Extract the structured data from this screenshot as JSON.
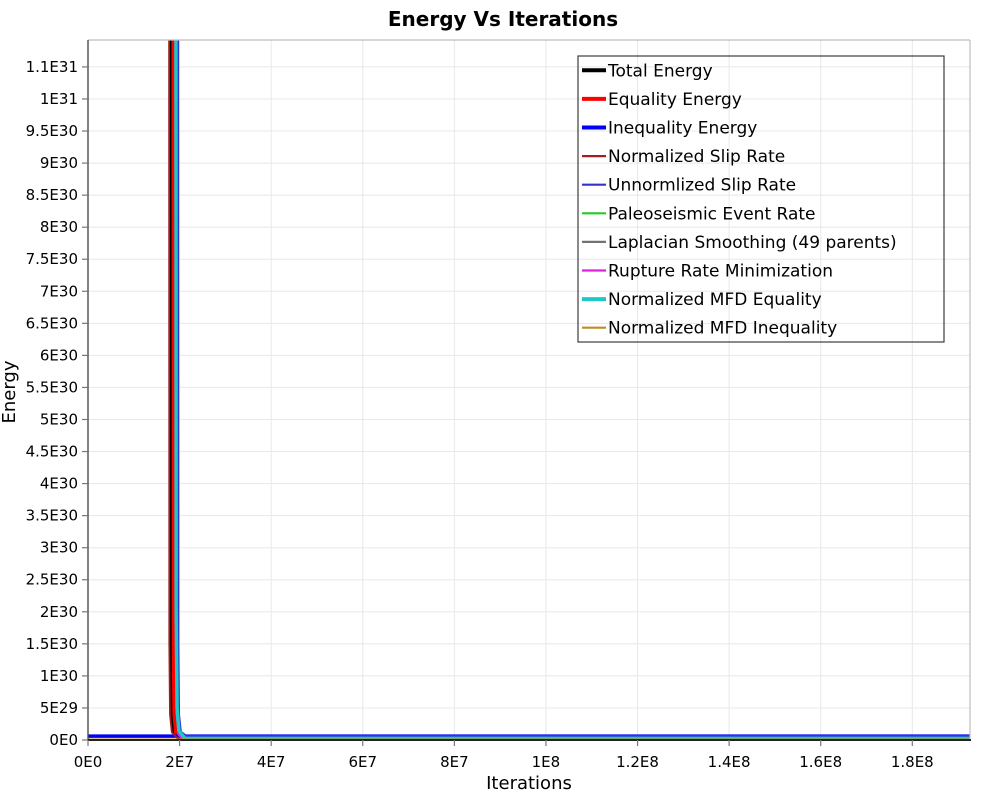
{
  "title": "Energy Vs Iterations",
  "colors": {
    "background": "#ffffff",
    "grid": "#e8e8e8",
    "frame": "#bdbdbd",
    "axis_left": "#4d4d4d",
    "axis_bottom": "#222222",
    "tick": "#777777",
    "legend_border": "#3c3c3c",
    "text": "#000000"
  },
  "chart_data": {
    "type": "line",
    "title": "Energy Vs Iterations",
    "xlabel": "Iterations",
    "ylabel": "Energy",
    "xlim": [
      0,
      192600000.0
    ],
    "ylim": [
      0,
      1.092e+31
    ],
    "grid": true,
    "legend_position": "top-right",
    "x_ticks": [
      {
        "value": 0,
        "label": "0E0"
      },
      {
        "value": 20000000.0,
        "label": "2E7"
      },
      {
        "value": 40000000.0,
        "label": "4E7"
      },
      {
        "value": 60000000.0,
        "label": "6E7"
      },
      {
        "value": 80000000.0,
        "label": "8E7"
      },
      {
        "value": 100000000.0,
        "label": "1E8"
      },
      {
        "value": 120000000.0,
        "label": "1.2E8"
      },
      {
        "value": 140000000.0,
        "label": "1.4E8"
      },
      {
        "value": 160000000.0,
        "label": "1.6E8"
      },
      {
        "value": 180000000.0,
        "label": "1.8E8"
      }
    ],
    "y_ticks": [
      {
        "value": 0,
        "label": "0E0"
      },
      {
        "value": 5e+29,
        "label": "5E29"
      },
      {
        "value": 1e+30,
        "label": "1E30"
      },
      {
        "value": 1.5e+30,
        "label": "1.5E30"
      },
      {
        "value": 2e+30,
        "label": "2E30"
      },
      {
        "value": 2.5e+30,
        "label": "2.5E30"
      },
      {
        "value": 3e+30,
        "label": "3E30"
      },
      {
        "value": 3.5e+30,
        "label": "3.5E30"
      },
      {
        "value": 4e+30,
        "label": "4E30"
      },
      {
        "value": 4.5e+30,
        "label": "4.5E30"
      },
      {
        "value": 5e+30,
        "label": "5E30"
      },
      {
        "value": 5.5e+30,
        "label": "5.5E30"
      },
      {
        "value": 6e+30,
        "label": "6E30"
      },
      {
        "value": 6.5e+30,
        "label": "6.5E30"
      },
      {
        "value": 7e+30,
        "label": "7E30"
      },
      {
        "value": 7.5e+30,
        "label": "7.5E30"
      },
      {
        "value": 8e+30,
        "label": "8E30"
      },
      {
        "value": 8.5e+30,
        "label": "8.5E30"
      },
      {
        "value": 9e+30,
        "label": "9E30"
      },
      {
        "value": 9.5e+30,
        "label": "9.5E30"
      },
      {
        "value": 1e+31,
        "label": "1E31"
      },
      {
        "value": 1.05e+31,
        "label": "1.1E31"
      }
    ],
    "series": [
      {
        "name": "Total Energy",
        "color": "#000000",
        "width": 3.5,
        "points": [
          [
            18100000.0,
            1.2e+31
          ],
          [
            18150000.0,
            1.5e+30
          ],
          [
            18300000.0,
            4e+29
          ],
          [
            18700000.0,
            1.2e+29
          ],
          [
            20000000.0,
            5e+28
          ],
          [
            192600000.0,
            4.5e+28
          ]
        ]
      },
      {
        "name": "Equality Energy",
        "color": "#ff0000",
        "width": 3.5,
        "points": [
          [
            18600000.0,
            1.2e+31
          ],
          [
            18650000.0,
            1.5e+30
          ],
          [
            18800000.0,
            4e+29
          ],
          [
            19200000.0,
            1.1e+29
          ],
          [
            20500000.0,
            5.5e+28
          ],
          [
            192600000.0,
            5.5e+28
          ]
        ]
      },
      {
        "name": "Inequality Energy",
        "color": "#0000ff",
        "width": 3.5,
        "points": [
          [
            0,
            6e+28
          ],
          [
            192600000.0,
            6e+28
          ]
        ]
      },
      {
        "name": "Normalized Slip Rate",
        "color": "#a02020",
        "width": 1.8,
        "points": [
          [
            17700000.0,
            1.2e+31
          ],
          [
            17750000.0,
            1.5e+30
          ],
          [
            17900000.0,
            4e+29
          ],
          [
            18300000.0,
            1.2e+29
          ],
          [
            19500000.0,
            3e+28
          ],
          [
            192600000.0,
            3e+28
          ]
        ]
      },
      {
        "name": "Unnormlized Slip Rate",
        "color": "#3333cc",
        "width": 1.8,
        "points": [
          [
            19700000.0,
            1.2e+31
          ],
          [
            19750000.0,
            1.5e+30
          ],
          [
            19900000.0,
            4e+29
          ],
          [
            20300000.0,
            1.3e+29
          ],
          [
            21500000.0,
            6.5e+28
          ],
          [
            192600000.0,
            6.5e+28
          ]
        ]
      },
      {
        "name": "Paleoseismic Event Rate",
        "color": "#22cc22",
        "width": 1.8,
        "points": [
          [
            19300000.0,
            1.2e+31
          ],
          [
            19350000.0,
            1.5e+30
          ],
          [
            19500000.0,
            4e+29
          ],
          [
            19900000.0,
            1e+29
          ],
          [
            21000000.0,
            2e+28
          ],
          [
            192600000.0,
            2e+28
          ]
        ]
      },
      {
        "name": "Laplacian Smoothing (49 parents)",
        "color": "#737373",
        "width": 1.8,
        "points": [
          [
            19200000.0,
            1.2e+31
          ],
          [
            19250000.0,
            1.5e+30
          ],
          [
            19400000.0,
            4e+29
          ],
          [
            19800000.0,
            9e+28
          ],
          [
            21000000.0,
            1.5e+28
          ],
          [
            192600000.0,
            1.5e+28
          ]
        ]
      },
      {
        "name": "Rupture Rate Minimization",
        "color": "#dd22dd",
        "width": 1.8,
        "points": [
          [
            19150000.0,
            1.2e+31
          ],
          [
            19200000.0,
            1.5e+30
          ],
          [
            19350000.0,
            4e+29
          ],
          [
            19750000.0,
            8e+28
          ],
          [
            20800000.0,
            8e+27
          ],
          [
            192600000.0,
            8e+27
          ]
        ]
      },
      {
        "name": "Normalized MFD Equality",
        "color": "#1fc8c8",
        "width": 3.5,
        "points": [
          [
            19200000.0,
            1.2e+31
          ],
          [
            19250000.0,
            2e+30
          ],
          [
            19450000.0,
            5e+29
          ],
          [
            19850000.0,
            1.4e+29
          ],
          [
            21200000.0,
            2.5e+28
          ],
          [
            192600000.0,
            2.5e+28
          ]
        ]
      },
      {
        "name": "Normalized MFD Inequality",
        "color": "#bb8e22",
        "width": 1.8,
        "points": [
          [
            0,
            1e+28
          ],
          [
            192600000.0,
            1e+28
          ]
        ]
      }
    ]
  }
}
